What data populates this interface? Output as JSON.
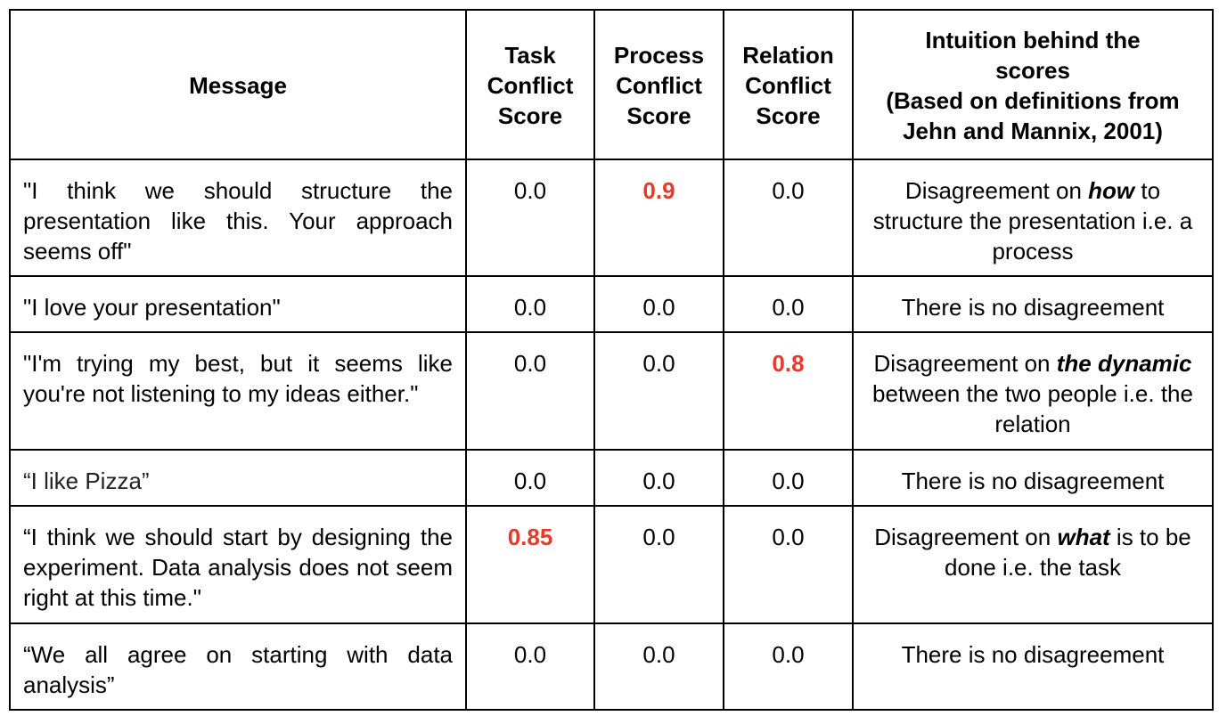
{
  "headers": {
    "message": "Message",
    "task": [
      "Task",
      "Conflict",
      "Score"
    ],
    "process": [
      "Process",
      "Conflict",
      "Score"
    ],
    "relation": [
      "Relation",
      "Conflict",
      "Score"
    ],
    "intuition": [
      "Intuition behind the",
      "scores",
      "(Based on definitions from",
      "Jehn and Mannix, 2001)"
    ]
  },
  "rows": [
    {
      "message": "\"I think we should structure the presentation like this. Your approach seems off\"",
      "task": "0.0",
      "process": "0.9",
      "relation": "0.0",
      "intuition": {
        "before": "Disagreement on ",
        "emph": "how",
        "after": " to structure the presentation i.e. a process"
      }
    },
    {
      "message": "\"I love your presentation\"",
      "task": "0.0",
      "process": "0.0",
      "relation": "0.0",
      "intuition": "There is no disagreement"
    },
    {
      "message": "\"I'm trying my best, but it seems like you're not listening to my ideas either.\"",
      "task": "0.0",
      "process": "0.0",
      "relation": "0.8",
      "intuition": {
        "before": "Disagreement on ",
        "emph": "the dynamic",
        "after": " between the two people i.e. the relation"
      }
    },
    {
      "message": "“I like Pizza”",
      "task": "0.0",
      "process": "0.0",
      "relation": "0.0",
      "intuition": "There is no disagreement"
    },
    {
      "message": "“I think we should start by designing the experiment. Data analysis does not seem right at this time.\"",
      "task": "0.85",
      "process": "0.0",
      "relation": "0.0",
      "intuition": {
        "before": "Disagreement on ",
        "emph": "what",
        "after": " is to be done i.e. the task"
      }
    },
    {
      "message": "“We all agree on starting with data analysis”",
      "task": "0.0",
      "process": "0.0",
      "relation": "0.0",
      "intuition": "There is no disagreement"
    }
  ],
  "colors": {
    "highlight": "#e8392b",
    "border": "#000000",
    "text": "#000000"
  }
}
